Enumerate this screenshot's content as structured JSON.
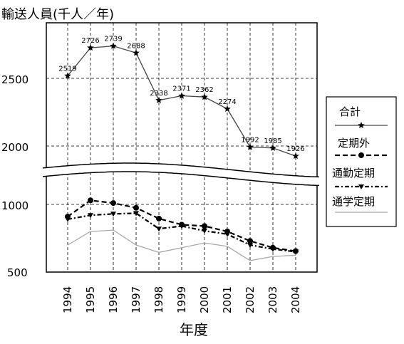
{
  "chart_data": {
    "type": "line",
    "ylabel": "輸送人員(千人／年)",
    "xlabel": "年度",
    "categories": [
      "1994",
      "1995",
      "1996",
      "1997",
      "1998",
      "1999",
      "2000",
      "2001",
      "2002",
      "2003",
      "2004"
    ],
    "yticks_upper": [
      "2500",
      "2000"
    ],
    "yticks_lower": [
      "1000",
      "500"
    ],
    "ylim_upper": [
      1800,
      2800
    ],
    "ylim_lower": [
      500,
      1100
    ],
    "axis_break": true,
    "grid": true,
    "legend_position": "right",
    "series": [
      {
        "name": "合計",
        "values": [
          2519,
          2726,
          2739,
          2688,
          2338,
          2371,
          2362,
          2274,
          1992,
          1985,
          1926
        ],
        "labels": [
          "2519",
          "2726",
          "2739",
          "2688",
          "2338",
          "2371",
          "2362",
          "2274",
          "1992",
          "1985",
          "1926"
        ],
        "color": "#333333",
        "marker": "star"
      },
      {
        "name": "定期外",
        "values": [
          910,
          1030,
          1010,
          975,
          895,
          850,
          840,
          800,
          730,
          680,
          655
        ],
        "color": "#000000",
        "marker": "circle"
      },
      {
        "name": "通勤定期",
        "values": [
          890,
          920,
          930,
          935,
          820,
          840,
          805,
          780,
          700,
          670,
          650
        ],
        "color": "#000000",
        "marker": "triangle"
      },
      {
        "name": "通学定期",
        "values": [
          700,
          800,
          810,
          700,
          645,
          680,
          715,
          690,
          585,
          615,
          625
        ],
        "color": "#aaaaaa",
        "marker": "none"
      }
    ]
  }
}
